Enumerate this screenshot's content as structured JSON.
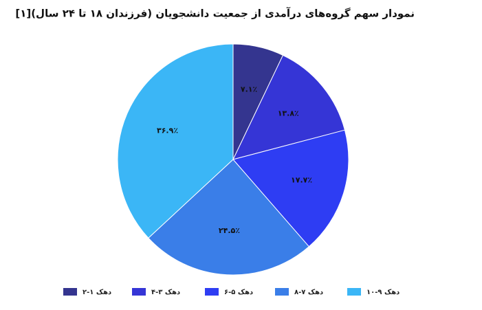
{
  "chart_data": {
    "type": "pie",
    "title": "نمودار سهم گروه‌های درآمدی از جمعیت دانشجویان (فرزندان ۱۸ تا ۲۴ سال)[۱]",
    "categories": [
      "دهک ۱-۲",
      "دهک ۳-۴",
      "دهک ۵-۶",
      "دهک ۷-۸",
      "دهک ۹-۱۰"
    ],
    "values": [
      7.1,
      13.8,
      17.7,
      24.5,
      36.9
    ],
    "value_labels": [
      "۷.۱٪",
      "۱۳.۸٪",
      "۱۷.۷٪",
      "۲۴.۵٪",
      "۳۶.۹٪"
    ],
    "colors": [
      "#34358f",
      "#3535d6",
      "#2e3df3",
      "#3a7ee8",
      "#3bb6f6"
    ],
    "legend": "bottom"
  }
}
